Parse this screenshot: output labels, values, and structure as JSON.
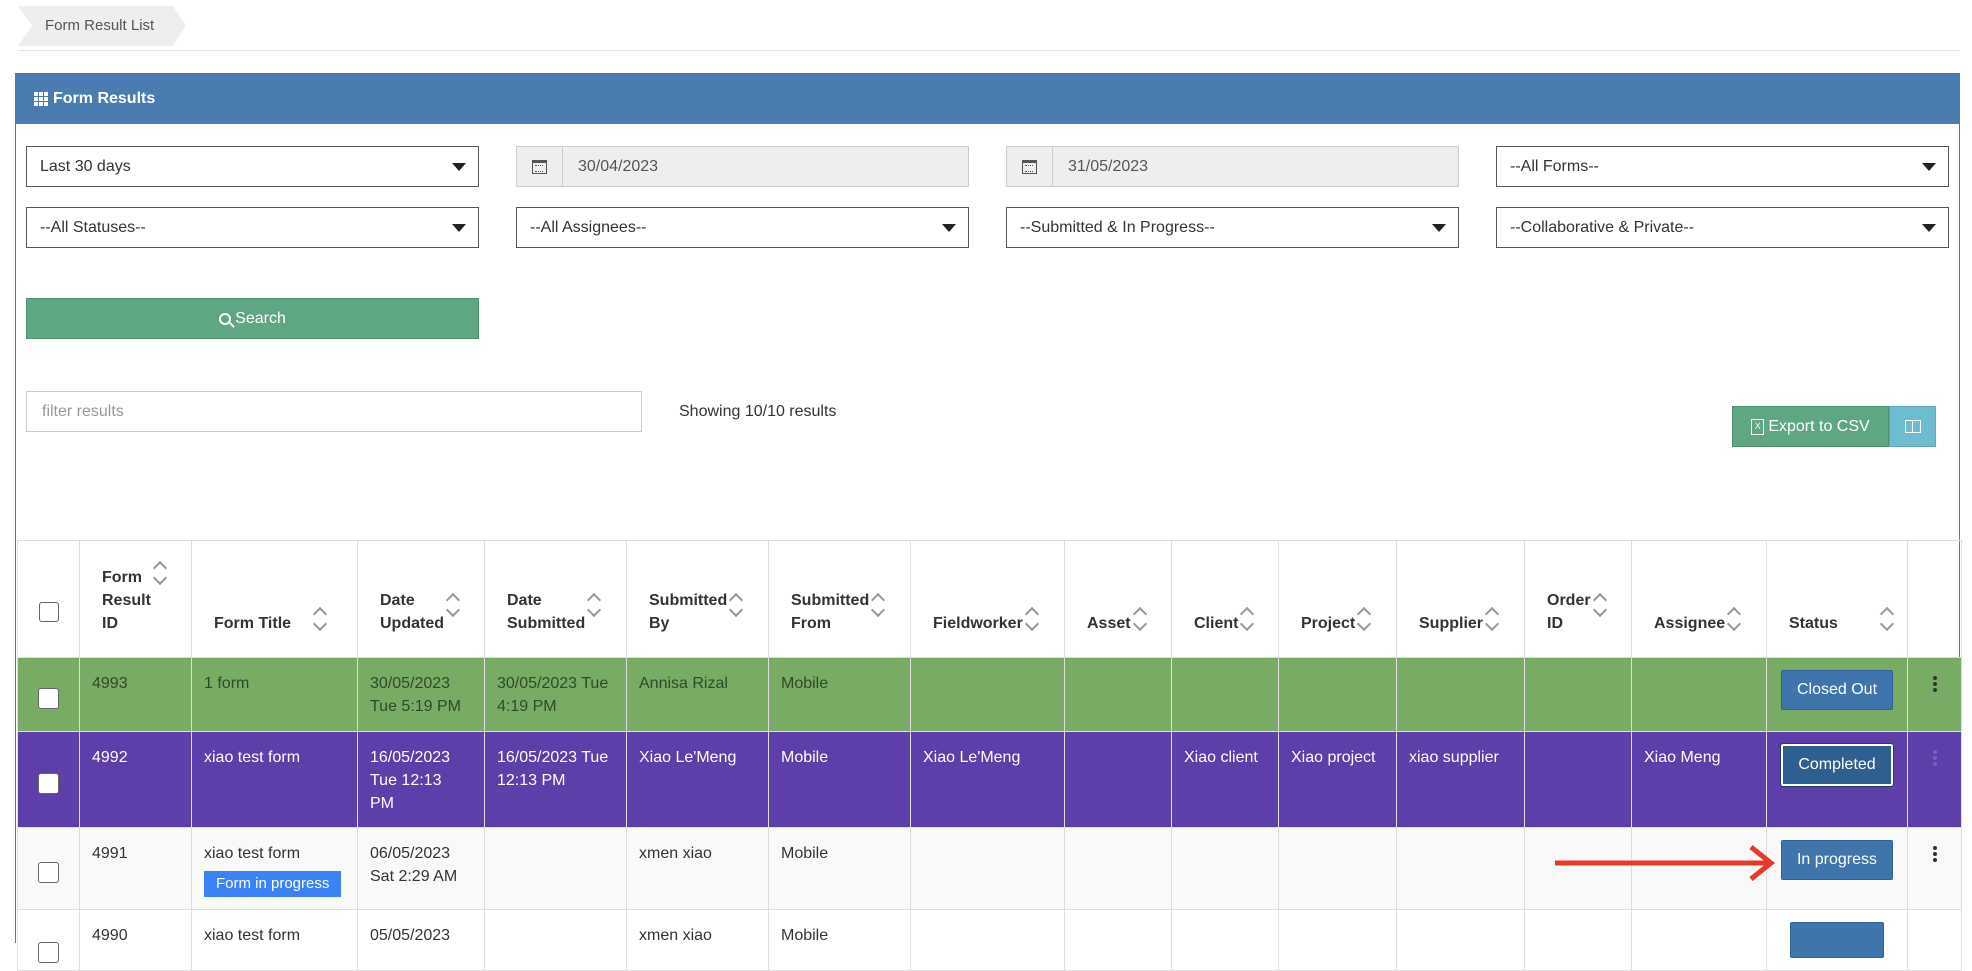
{
  "breadcrumb": {
    "label": "Form Result List"
  },
  "panel": {
    "title": "Form Results"
  },
  "filters": {
    "date_range": "Last 30 days",
    "date_from": "30/04/2023",
    "date_to": "31/05/2023",
    "forms": "--All Forms--",
    "statuses": "--All Statuses--",
    "assignees": "--All Assignees--",
    "submission": "--Submitted & In Progress--",
    "visibility": "--Collaborative & Private--"
  },
  "search_label": "Search",
  "filter_results": {
    "placeholder": "filter results",
    "value": ""
  },
  "showing_text": "Showing 10/10 results",
  "export_label": "Export to CSV",
  "table": {
    "headers": {
      "id_line1": "Form",
      "id_line2": "Result",
      "id_line3": "ID",
      "title": "Form Title",
      "updated_line1": "Date",
      "updated_line2": "Updated",
      "submitted_line1": "Date",
      "submitted_line2": "Submitted",
      "by_line1": "Submitted",
      "by_line2": "By",
      "from_line1": "Submitted",
      "from_line2": "From",
      "fieldworker": "Fieldworker",
      "asset": "Asset",
      "client": "Client",
      "project": "Project",
      "supplier": "Supplier",
      "order_line1": "Order",
      "order_line2": "ID",
      "assignee": "Assignee",
      "status": "Status"
    },
    "rows": [
      {
        "id": "4993",
        "title": "1 form",
        "updated_l1": "30/05/2023",
        "updated_l2": "Tue 5:19 PM",
        "updated_l3": "",
        "submitted_l1": "30/05/2023 Tue",
        "submitted_l2": "4:19 PM",
        "by": "Annisa Rizal",
        "from": "Mobile",
        "fieldworker": "",
        "asset": "",
        "client": "",
        "project": "",
        "supplier": "",
        "order": "",
        "assignee": "",
        "status": "Closed Out",
        "row_color": "#78ab64"
      },
      {
        "id": "4992",
        "title": "xiao test form",
        "updated_l1": "16/05/2023",
        "updated_l2": "Tue 12:13",
        "updated_l3": "PM",
        "submitted_l1": "16/05/2023 Tue",
        "submitted_l2": "12:13 PM",
        "by": "Xiao Le'Meng",
        "from": "Mobile",
        "fieldworker": "Xiao Le'Meng",
        "asset": "",
        "client": "Xiao client",
        "project": "Xiao project",
        "supplier": "xiao supplier",
        "order": "",
        "assignee": "Xiao Meng",
        "status": "Completed",
        "row_color": "#5e3ea8"
      },
      {
        "id": "4991",
        "title": "xiao test form",
        "badge": "Form in progress",
        "updated_l1": "06/05/2023",
        "updated_l2": "Sat 2:29 AM",
        "updated_l3": "",
        "submitted_l1": "",
        "submitted_l2": "",
        "by": "xmen xiao",
        "from": "Mobile",
        "fieldworker": "",
        "asset": "",
        "client": "",
        "project": "",
        "supplier": "",
        "order": "",
        "assignee": "",
        "status": "In progress",
        "row_color": "#f9f9f9"
      },
      {
        "id": "4990",
        "title": "xiao test form",
        "updated_l1": "05/05/2023",
        "by": "xmen xiao",
        "from": "Mobile"
      }
    ]
  },
  "colors": {
    "header_blue": "#4a7cb1",
    "search_green": "#5fa683",
    "annotation_arrow": "#e53a2a"
  }
}
